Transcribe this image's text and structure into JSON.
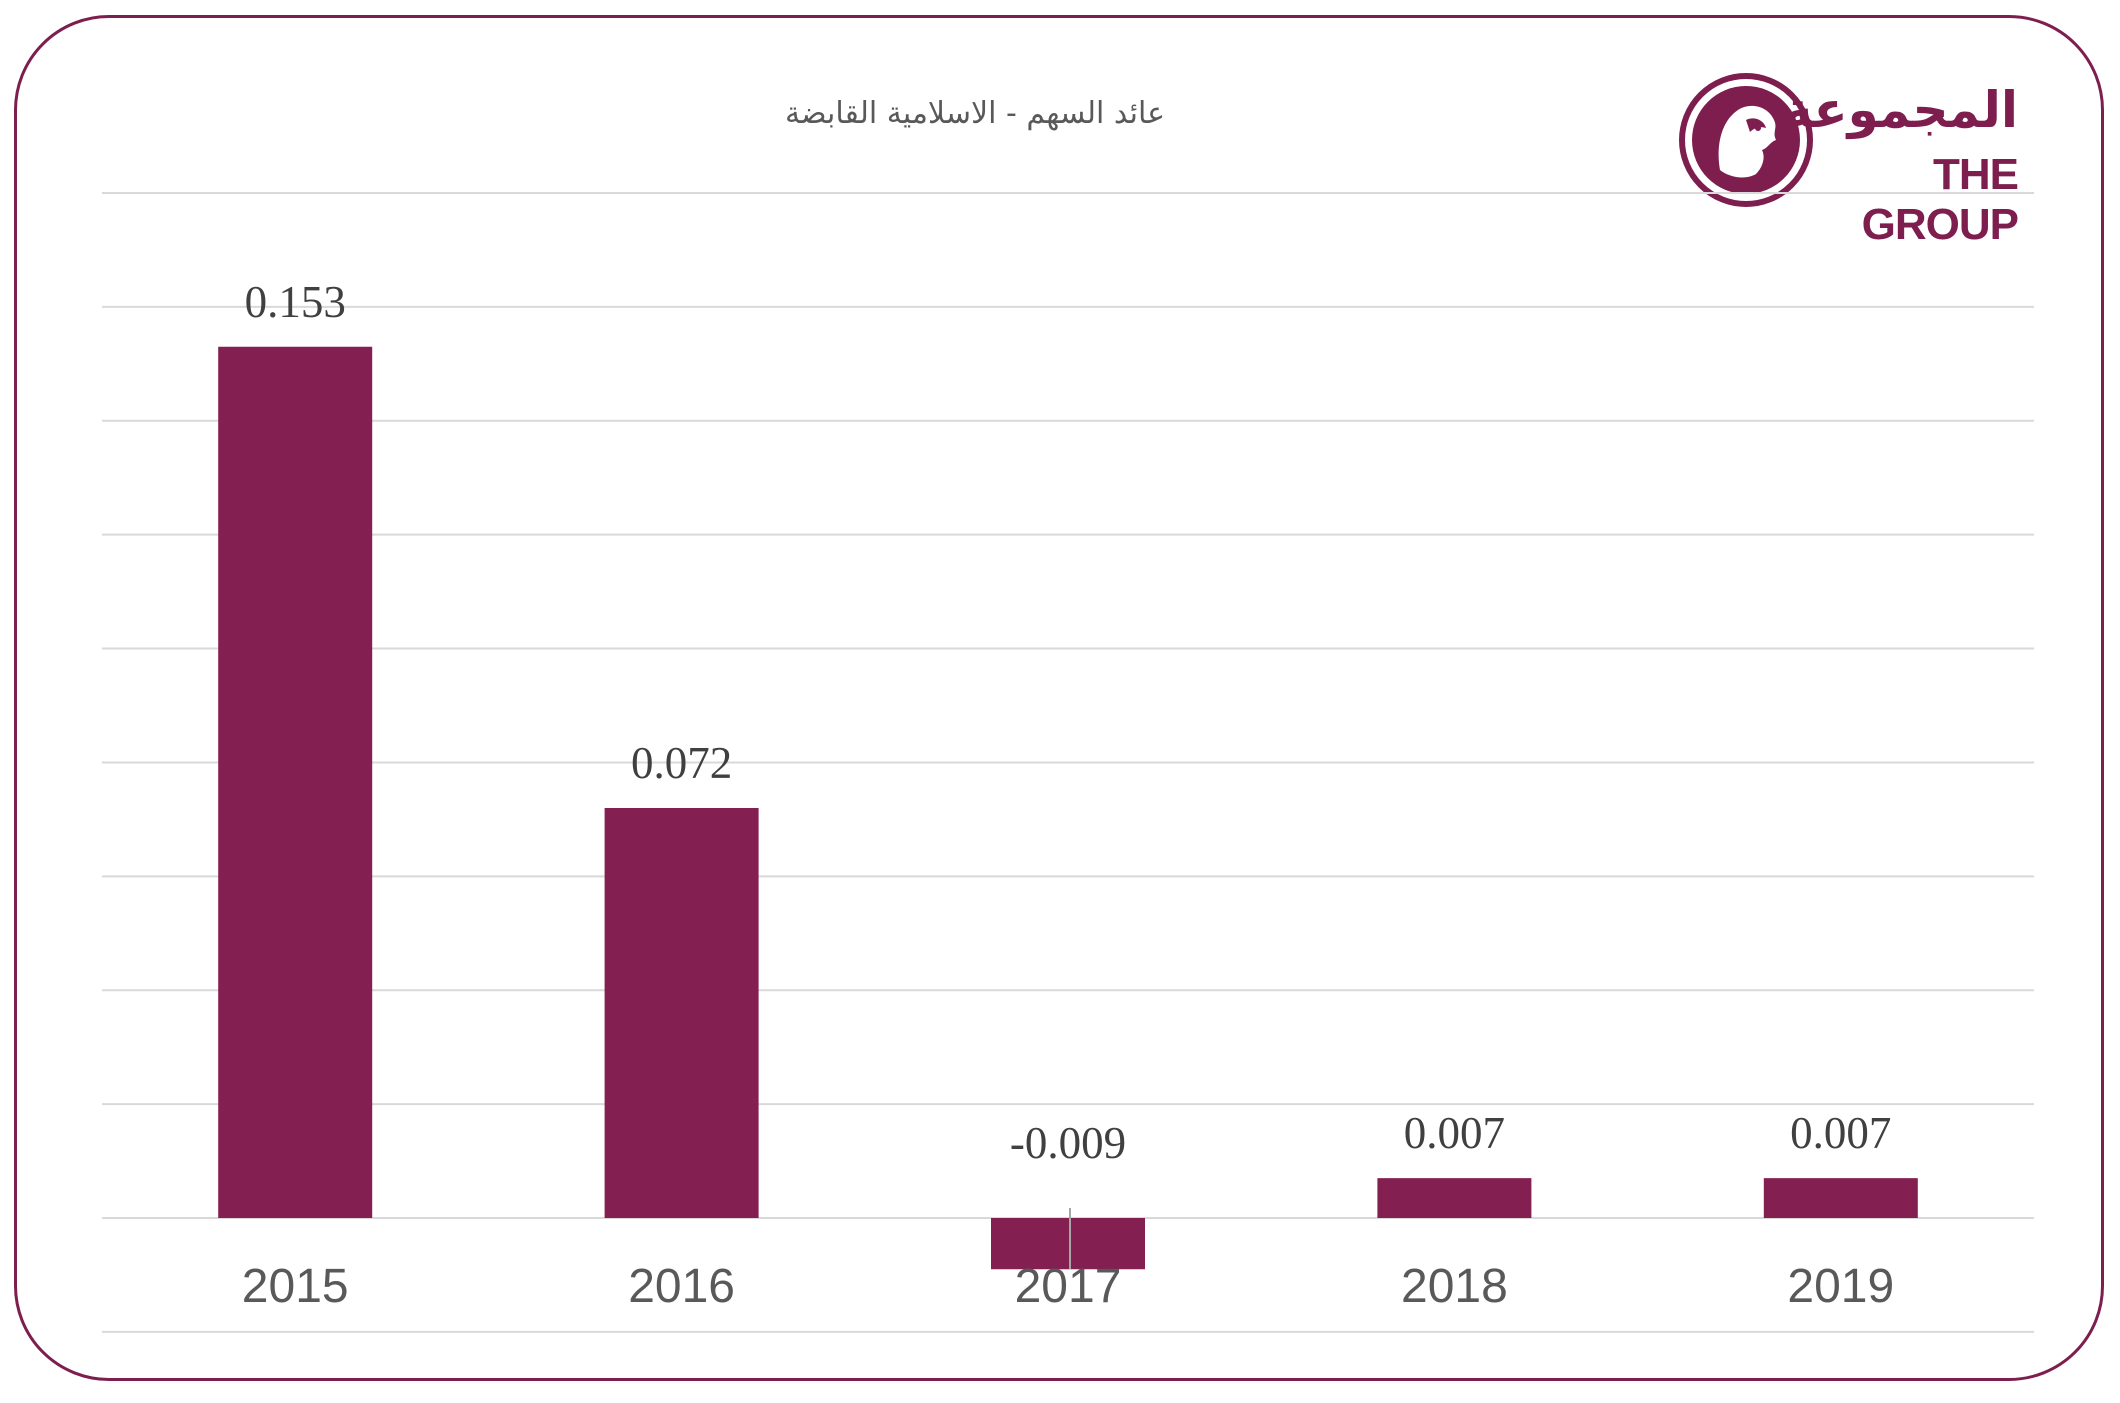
{
  "brand": {
    "name_ar": "المجموعة",
    "name_en": "THE GROUP",
    "color": "#7d1e4f"
  },
  "chart_data": {
    "type": "bar",
    "title": "عائد السهم -  الاسلامية القابضة",
    "categories": [
      "2015",
      "2016",
      "2017",
      "2018",
      "2019"
    ],
    "values": [
      0.153,
      0.072,
      -0.009,
      0.007,
      0.007
    ],
    "labels": [
      "0.153",
      "0.072",
      "-0.009",
      "0.007",
      "0.007"
    ],
    "ylim": [
      -0.02,
      0.18
    ],
    "grid": true,
    "legend": "none",
    "bar_color": "#841f51",
    "negative_label_color": "#ff0000",
    "label_color": "#404040",
    "tick_color": "#595959"
  }
}
